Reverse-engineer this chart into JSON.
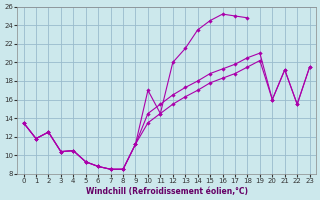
{
  "xlabel": "Windchill (Refroidissement éolien,°C)",
  "bg_color": "#cce8ec",
  "line_color": "#aa00aa",
  "grid_color": "#99bbcc",
  "xlim": [
    -0.5,
    23.5
  ],
  "ylim": [
    8,
    26
  ],
  "xticks": [
    0,
    1,
    2,
    3,
    4,
    5,
    6,
    7,
    8,
    9,
    10,
    11,
    12,
    13,
    14,
    15,
    16,
    17,
    18,
    19,
    20,
    21,
    22,
    23
  ],
  "yticks": [
    8,
    10,
    12,
    14,
    16,
    18,
    20,
    22,
    24,
    26
  ],
  "curve1_x": [
    0,
    1,
    2,
    3,
    4,
    5,
    6,
    7,
    8,
    9,
    10,
    11,
    12,
    13,
    14,
    15,
    16,
    17,
    18
  ],
  "curve1_y": [
    13.5,
    11.8,
    12.5,
    10.4,
    10.5,
    9.3,
    8.8,
    8.5,
    8.5,
    11.2,
    17.0,
    14.5,
    20.0,
    21.5,
    23.5,
    24.5,
    25.2,
    25.0,
    24.8
  ],
  "curve2_x": [
    0,
    1,
    2,
    3,
    4,
    5,
    6,
    7,
    8,
    9,
    10,
    11,
    12,
    13,
    14,
    15,
    16,
    17,
    18,
    19,
    20,
    21,
    22,
    23
  ],
  "curve2_y": [
    13.5,
    11.8,
    12.5,
    10.4,
    10.5,
    9.3,
    8.8,
    8.5,
    8.5,
    11.2,
    14.5,
    15.5,
    16.5,
    17.3,
    18.0,
    18.8,
    19.3,
    19.8,
    20.5,
    21.0,
    16.0,
    19.2,
    15.5,
    19.5
  ],
  "curve3_x": [
    0,
    1,
    2,
    3,
    4,
    5,
    6,
    7,
    8,
    9,
    10,
    11,
    12,
    13,
    14,
    15,
    16,
    17,
    18,
    19,
    20,
    21,
    22,
    23
  ],
  "curve3_y": [
    13.5,
    11.8,
    12.5,
    10.4,
    10.5,
    9.3,
    8.8,
    8.5,
    8.5,
    11.2,
    13.5,
    14.5,
    15.5,
    16.3,
    17.0,
    17.8,
    18.3,
    18.8,
    19.5,
    20.2,
    16.0,
    19.2,
    15.5,
    19.5
  ]
}
